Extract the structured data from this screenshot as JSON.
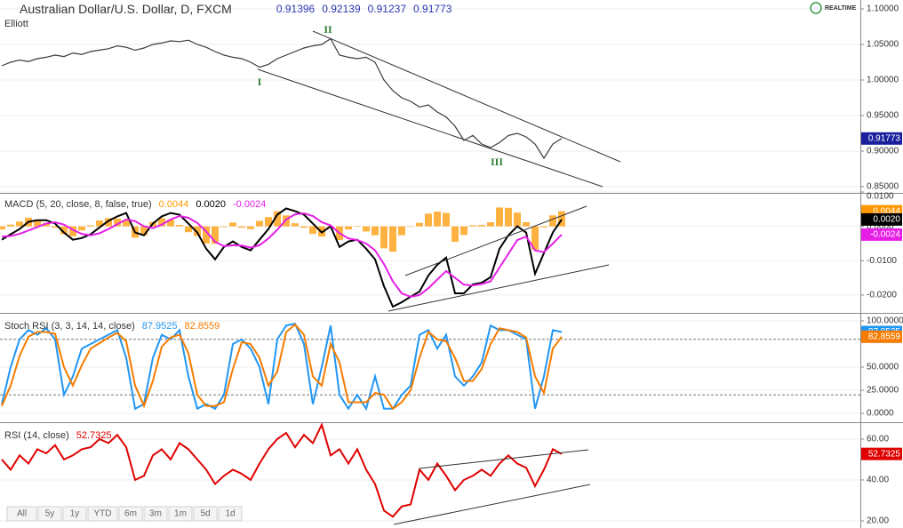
{
  "header": {
    "symbol": "Australian Dollar/U.S. Dollar, D, FXCM",
    "ohlc": [
      "0.91396",
      "0.92139",
      "0.91237",
      "0.91773"
    ],
    "study": "Elliott",
    "realtime": "REALTIME"
  },
  "chart_data": [
    {
      "type": "line",
      "ylim": [
        0.84125,
        1.1125
      ],
      "yticks": [
        {
          "value": 1.1,
          "label": "1.10000"
        },
        {
          "value": 1.05,
          "label": "1.05000"
        },
        {
          "value": 1.0,
          "label": "1.00000"
        },
        {
          "value": 0.95,
          "label": "0.95000"
        },
        {
          "value": 0.9,
          "label": "0.90000"
        },
        {
          "value": 0.85,
          "label": "0.85000"
        }
      ],
      "grid": true,
      "annotations": [
        "I",
        "II",
        "III"
      ],
      "series": [
        {
          "type": "line",
          "color": "#3a3a3a",
          "values": [
            1.02,
            1.025,
            1.028,
            1.026,
            1.03,
            1.032,
            1.035,
            1.033,
            1.038,
            1.036,
            1.04,
            1.042,
            1.044,
            1.048,
            1.046,
            1.042,
            1.045,
            1.05,
            1.052,
            1.055,
            1.054,
            1.056,
            1.05,
            1.046,
            1.04,
            1.035,
            1.032,
            1.03,
            1.025,
            1.018,
            1.022,
            1.03,
            1.035,
            1.04,
            1.045,
            1.048,
            1.05,
            1.058,
            1.035,
            1.032,
            1.03,
            1.032,
            1.025,
            1.0,
            0.985,
            0.975,
            0.97,
            0.962,
            0.965,
            0.955,
            0.948,
            0.935,
            0.915,
            0.922,
            0.91,
            0.905,
            0.912,
            0.922,
            0.925,
            0.92,
            0.91,
            0.89,
            0.91,
            0.91773
          ]
        }
      ]
    },
    {
      "type": "line",
      "title": "MACD (5, 20, close, 8, false, true)",
      "ylim": [
        -0.0252,
        0.01
      ],
      "yticks": [
        {
          "value": 0.01,
          "label": "0.0100"
        },
        {
          "value": 0,
          "label": "0.0000"
        },
        {
          "value": -0.01,
          "label": "-0.0100"
        },
        {
          "value": -0.02,
          "label": "-0.0200"
        }
      ],
      "grid": true,
      "series": [
        {
          "type": "bar",
          "color": "#ff9800",
          "values": [
            -0.0009,
            0.0005,
            0.0014,
            0.0025,
            0.002,
            0.001,
            -0.0004,
            -0.0023,
            -0.0029,
            -0.0012,
            0.0003,
            0.0017,
            0.0024,
            0.0023,
            0.0019,
            -0.0033,
            -0.0026,
            0.0013,
            0.0024,
            0.0019,
            0.0004,
            -0.0017,
            -0.0028,
            -0.005,
            -0.0051,
            -0.0002,
            0.0011,
            -0.0004,
            -0.0008,
            0.0016,
            0.0027,
            0.0044,
            0.0032,
            0.0009,
            -0.0004,
            -0.0022,
            -0.003,
            -0.0003,
            -0.004,
            -0.0009,
            0.0001,
            -0.0015,
            -0.0026,
            -0.0064,
            -0.0074,
            -0.0026,
            0.0,
            0.001,
            0.0037,
            0.0043,
            0.0039,
            -0.0045,
            -0.0025,
            0.0003,
            0.0004,
            0.0012,
            0.0055,
            0.0054,
            0.004,
            0.0012,
            -0.0068,
            -0.0003,
            0.0032,
            0.0044
          ]
        },
        {
          "type": "line",
          "color": "#000000",
          "last_label": "0.0020",
          "values": [
            -0.0039,
            -0.0023,
            -0.0008,
            0.0013,
            0.0018,
            0.0018,
            0.0008,
            -0.0018,
            -0.0039,
            -0.0034,
            -0.0023,
            -0.0003,
            0.0016,
            0.0029,
            0.0039,
            -0.0018,
            -0.0026,
            0.0008,
            0.0029,
            0.0039,
            0.0034,
            0.0008,
            -0.0018,
            -0.0065,
            -0.0096,
            -0.006,
            -0.0044,
            -0.006,
            -0.007,
            -0.0039,
            -0.0008,
            0.0034,
            0.0052,
            0.0044,
            0.0034,
            0.0008,
            -0.0018,
            0.0,
            -0.006,
            -0.0044,
            -0.0039,
            -0.0065,
            -0.0096,
            -0.0174,
            -0.0234,
            -0.0221,
            -0.0205,
            -0.019,
            -0.0143,
            -0.0112,
            -0.0091,
            -0.0195,
            -0.0195,
            -0.0169,
            -0.0164,
            -0.0148,
            -0.0065,
            -0.0026,
            0.0,
            -0.0018,
            -0.0138,
            -0.0078,
            -0.0018,
            0.002
          ]
        },
        {
          "type": "line",
          "color": "#e61ee6",
          "values": [
            -0.003,
            -0.0028,
            -0.0022,
            -0.0012,
            -0.0002,
            0.0008,
            0.0012,
            0.0005,
            -0.001,
            -0.0022,
            -0.0026,
            -0.002,
            -0.0008,
            0.0006,
            0.002,
            0.0015,
            0.0,
            -0.0005,
            0.0005,
            0.002,
            0.003,
            0.0025,
            0.001,
            -0.0015,
            -0.0045,
            -0.0058,
            -0.0055,
            -0.0056,
            -0.0062,
            -0.0055,
            -0.0035,
            -0.001,
            0.002,
            0.0035,
            0.0038,
            0.003,
            0.0012,
            0.0003,
            -0.002,
            -0.0035,
            -0.004,
            -0.005,
            -0.007,
            -0.011,
            -0.016,
            -0.0195,
            -0.0205,
            -0.02,
            -0.018,
            -0.0155,
            -0.013,
            -0.015,
            -0.017,
            -0.0172,
            -0.0168,
            -0.016,
            -0.012,
            -0.008,
            -0.004,
            -0.003,
            -0.007,
            -0.0075,
            -0.005,
            -0.0024
          ]
        }
      ]
    },
    {
      "type": "line",
      "title": "Stoch RSI (3, 3, 14, 14, close)",
      "ylim": [
        -9.6,
        107.7
      ],
      "yticks": [
        {
          "value": 100,
          "label": "100.0000"
        },
        {
          "value": 50,
          "label": "50.0000"
        },
        {
          "value": 25,
          "label": "25.0000"
        },
        {
          "value": 0,
          "label": "0.0000"
        }
      ],
      "grid": true,
      "levels": [
        80,
        20
      ],
      "series": [
        {
          "type": "line",
          "color": "#2196f3",
          "values": [
            10,
            50,
            80,
            90,
            85,
            92,
            80,
            20,
            40,
            70,
            75,
            80,
            85,
            90,
            60,
            5,
            10,
            60,
            85,
            80,
            90,
            40,
            5,
            10,
            5,
            20,
            75,
            80,
            70,
            50,
            10,
            80,
            95,
            97,
            75,
            10,
            50,
            95,
            20,
            5,
            20,
            5,
            40,
            5,
            5,
            20,
            30,
            85,
            90,
            70,
            85,
            40,
            30,
            40,
            55,
            95,
            90,
            90,
            85,
            80,
            5,
            40,
            90,
            87.9525
          ]
        },
        {
          "type": "line",
          "color": "#f57c00",
          "values": [
            8,
            30,
            62,
            83,
            88,
            88,
            86,
            50,
            30,
            52,
            70,
            76,
            82,
            87,
            78,
            30,
            8,
            35,
            72,
            82,
            85,
            65,
            20,
            8,
            8,
            12,
            48,
            77,
            75,
            60,
            30,
            45,
            88,
            96,
            85,
            40,
            30,
            75,
            55,
            12,
            12,
            12,
            22,
            20,
            5,
            12,
            25,
            60,
            88,
            80,
            78,
            60,
            35,
            35,
            48,
            75,
            92,
            90,
            88,
            82,
            40,
            22,
            70,
            82.8559
          ]
        }
      ]
    },
    {
      "type": "line",
      "title": "RSI (14, close)",
      "ylim": [
        16.5,
        67.8
      ],
      "yticks": [
        {
          "value": 60,
          "label": "60.00"
        },
        {
          "value": 40,
          "label": "40.00"
        },
        {
          "value": 20,
          "label": "20.00"
        }
      ],
      "grid": true,
      "series": [
        {
          "type": "line",
          "color": "#e00000",
          "values": [
            50,
            45,
            52,
            48,
            55,
            53,
            57,
            50,
            52,
            55,
            56,
            60,
            58,
            62,
            56,
            40,
            42,
            52,
            55,
            50,
            58,
            55,
            50,
            45,
            38,
            42,
            45,
            43,
            40,
            48,
            55,
            60,
            63,
            56,
            62,
            58,
            67,
            52,
            55,
            48,
            55,
            45,
            38,
            25,
            22,
            27,
            28,
            45,
            40,
            48,
            42,
            35,
            40,
            42,
            45,
            42,
            48,
            52,
            48,
            46,
            37,
            45,
            55,
            52.7325
          ]
        }
      ]
    }
  ],
  "toolbar": [
    "All",
    "5y",
    "1y",
    "YTD",
    "6m",
    "3m",
    "1m",
    "5d",
    "1d"
  ]
}
